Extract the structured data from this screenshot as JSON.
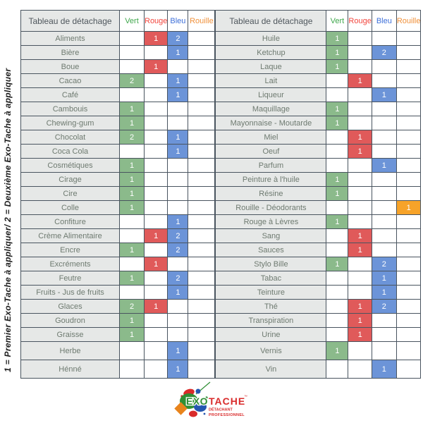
{
  "side_note": "1 = Premier Exo-Tache à appliquer/ 2 = Deuxième  Exo-Tache à appliquer",
  "header_label": "Tableau de détachage",
  "colors": {
    "border": "#49545F",
    "label_bg": "#E6E8E7",
    "label_text": "#6E7A70",
    "title_text": "#4E565C",
    "number_text": "#FFFFFF"
  },
  "columns": [
    {
      "key": "vert",
      "label": "Vert",
      "header_color": "#3FA74C",
      "cell_color": "#8BBA8B"
    },
    {
      "key": "rouge",
      "label": "Rouge",
      "header_color": "#F2453D",
      "cell_color": "#E05A5A"
    },
    {
      "key": "bleu",
      "label": "Bleu",
      "header_color": "#3D6FD9",
      "cell_color": "#6C94D8"
    },
    {
      "key": "rouille",
      "label": "Rouille",
      "header_color": "#F0913B",
      "cell_color": "#F7A329"
    }
  ],
  "tables": [
    {
      "rows": [
        {
          "label": "Aliments",
          "cells": [
            "",
            "1",
            "2",
            ""
          ]
        },
        {
          "label": "Bière",
          "cells": [
            "",
            "",
            "1",
            ""
          ]
        },
        {
          "label": "Boue",
          "cells": [
            "",
            "1",
            "",
            ""
          ]
        },
        {
          "label": "Cacao",
          "cells": [
            "2",
            "",
            "1",
            ""
          ]
        },
        {
          "label": "Café",
          "cells": [
            "",
            "",
            "1",
            ""
          ]
        },
        {
          "label": "Cambouis",
          "cells": [
            "1",
            "",
            "",
            ""
          ]
        },
        {
          "label": "Chewing-gum",
          "cells": [
            "1",
            "",
            "",
            ""
          ]
        },
        {
          "label": "Chocolat",
          "cells": [
            "2",
            "",
            "1",
            ""
          ]
        },
        {
          "label": "Coca Cola",
          "cells": [
            "",
            "",
            "1",
            ""
          ]
        },
        {
          "label": "Cosmétiques",
          "cells": [
            "1",
            "",
            "",
            ""
          ]
        },
        {
          "label": "Cirage",
          "cells": [
            "1",
            "",
            "",
            ""
          ]
        },
        {
          "label": "Cire",
          "cells": [
            "1",
            "",
            "",
            ""
          ]
        },
        {
          "label": "Colle",
          "cells": [
            "1",
            "",
            "",
            ""
          ]
        },
        {
          "label": "Confiture",
          "cells": [
            "",
            "",
            "1",
            ""
          ]
        },
        {
          "label": "Crème Alimentaire",
          "cells": [
            "",
            "1",
            "2",
            ""
          ]
        },
        {
          "label": "Encre",
          "cells": [
            "1",
            "",
            "2",
            ""
          ]
        },
        {
          "label": "Excréments",
          "cells": [
            "",
            "1",
            "",
            ""
          ]
        },
        {
          "label": "Feutre",
          "cells": [
            "1",
            "",
            "2",
            ""
          ]
        },
        {
          "label": "Fruits - Jus de fruits",
          "cells": [
            "",
            "",
            "1",
            ""
          ]
        },
        {
          "label": "Glaces",
          "cells": [
            "2",
            "1",
            "",
            ""
          ]
        },
        {
          "label": "Goudron",
          "cells": [
            "1",
            "",
            "",
            ""
          ]
        },
        {
          "label": "Graisse",
          "cells": [
            "1",
            "",
            "",
            ""
          ]
        },
        {
          "label": "Herbe",
          "cells": [
            "",
            "",
            "1",
            ""
          ]
        },
        {
          "label": "Hénné",
          "cells": [
            "",
            "",
            "1",
            ""
          ]
        }
      ]
    },
    {
      "rows": [
        {
          "label": "Huile",
          "cells": [
            "1",
            "",
            "",
            ""
          ]
        },
        {
          "label": "Ketchup",
          "cells": [
            "1",
            "",
            "2",
            ""
          ]
        },
        {
          "label": "Laque",
          "cells": [
            "1",
            "",
            "",
            ""
          ]
        },
        {
          "label": "Lait",
          "cells": [
            "",
            "1",
            "",
            ""
          ]
        },
        {
          "label": "Liqueur",
          "cells": [
            "",
            "",
            "1",
            ""
          ]
        },
        {
          "label": "Maquillage",
          "cells": [
            "1",
            "",
            "",
            ""
          ]
        },
        {
          "label": "Mayonnaise - Moutarde",
          "cells": [
            "1",
            "",
            "",
            ""
          ]
        },
        {
          "label": "Miel",
          "cells": [
            "",
            "1",
            "",
            ""
          ]
        },
        {
          "label": "Oeuf",
          "cells": [
            "",
            "1",
            "",
            ""
          ]
        },
        {
          "label": "Parfum",
          "cells": [
            "",
            "",
            "1",
            ""
          ]
        },
        {
          "label": "Peinture à l'huile",
          "cells": [
            "1",
            "",
            "",
            ""
          ]
        },
        {
          "label": "Résine",
          "cells": [
            "1",
            "",
            "",
            ""
          ]
        },
        {
          "label": "Rouille - Déodorants",
          "cells": [
            "",
            "",
            "",
            "1"
          ]
        },
        {
          "label": "Rouge à Lèvres",
          "cells": [
            "1",
            "",
            "",
            ""
          ]
        },
        {
          "label": "Sang",
          "cells": [
            "",
            "1",
            "",
            ""
          ]
        },
        {
          "label": "Sauces",
          "cells": [
            "",
            "1",
            "",
            ""
          ]
        },
        {
          "label": "Stylo Bille",
          "cells": [
            "1",
            "",
            "2",
            ""
          ]
        },
        {
          "label": "Tabac",
          "cells": [
            "",
            "",
            "1",
            ""
          ]
        },
        {
          "label": "Teinture",
          "cells": [
            "",
            "",
            "1",
            ""
          ]
        },
        {
          "label": "Thé",
          "cells": [
            "",
            "1",
            "2",
            ""
          ]
        },
        {
          "label": "Transpiration",
          "cells": [
            "",
            "1",
            "",
            ""
          ]
        },
        {
          "label": "Urine",
          "cells": [
            "",
            "1",
            "",
            ""
          ]
        },
        {
          "label": "Vernis",
          "cells": [
            "1",
            "",
            "",
            ""
          ]
        },
        {
          "label": "Vin",
          "cells": [
            "",
            "",
            "1",
            ""
          ]
        }
      ]
    }
  ],
  "logo": {
    "exo": "EXO",
    "tache": "TACHE",
    "trademark": "™",
    "subtitle_line1": "DÉTACHANT",
    "subtitle_line2": "PROFESSIONNEL",
    "colors": {
      "green": "#2F8F35",
      "red": "#D92B2B",
      "blue": "#2456B0",
      "orange": "#E8841C"
    }
  }
}
